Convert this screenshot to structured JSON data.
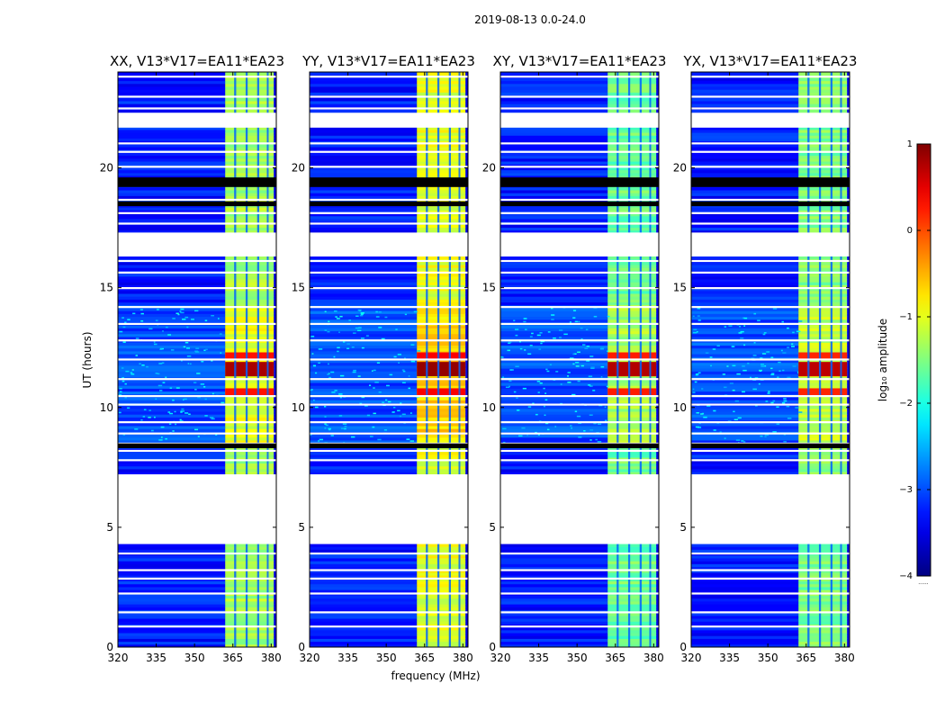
{
  "chart_data": {
    "type": "heatmap",
    "title": "2019-08-13 0.0-24.0",
    "xlabel": "frequency (MHz)",
    "ylabel": "UT (hours)",
    "xlim": [
      320,
      382
    ],
    "ylim": [
      0,
      24
    ],
    "x_ticks": [
      320,
      335,
      350,
      365,
      380
    ],
    "y_ticks": [
      0,
      5,
      10,
      15,
      20
    ],
    "panels": [
      {
        "title": "XX, V13*V17=EA11*EA23",
        "polarization": "XX",
        "y_tick_labels": [
          "0",
          "5",
          "10",
          "15",
          "20"
        ],
        "high_band_level": -1.3,
        "hot_level": 0.3
      },
      {
        "title": "YY, V13*V17=EA11*EA23",
        "polarization": "YY",
        "y_tick_labels": [
          "0",
          "5",
          "10",
          "15",
          "20"
        ],
        "high_band_level": -1.0,
        "hot_level": 0.4
      },
      {
        "title": "XY, V13*V17=EA11*EA23",
        "polarization": "XY",
        "y_tick_labels": [
          "0",
          "5",
          "10",
          "15",
          "20"
        ],
        "high_band_level": -1.6,
        "hot_level": 0.25
      },
      {
        "title": "YX, V13*V17=EA11*EA23",
        "polarization": "YX",
        "y_tick_labels": [
          "0",
          "5",
          "10",
          "15",
          "20"
        ],
        "high_band_level": -1.5,
        "hot_level": 0.2
      }
    ],
    "high_band_mhz": [
      362,
      381
    ],
    "band_gaps_mhz": [
      [
        365.5,
        366.3
      ],
      [
        370.0,
        370.8
      ],
      [
        374.5,
        375.3
      ],
      [
        378.3,
        379.0
      ]
    ],
    "no_data_hours": [
      [
        4.3,
        7.2
      ],
      [
        16.3,
        17.3
      ],
      [
        21.7,
        22.3
      ]
    ],
    "flagged_black_hours": [
      [
        8.3,
        8.5
      ],
      [
        18.4,
        18.6
      ],
      [
        19.2,
        19.6
      ]
    ],
    "active_period_hours": [
      8.5,
      14.2
    ],
    "strong_rfi_hours": [
      [
        11.3,
        11.9
      ],
      [
        12.0,
        12.3
      ],
      [
        10.5,
        10.8
      ]
    ],
    "colorbar": {
      "label": "log₁₀ amplitude",
      "min": -4,
      "max": 1,
      "ticks": [
        1,
        0,
        -1,
        -2,
        -3,
        -4
      ],
      "tick_labels": [
        "1",
        "0",
        "−1",
        "−2",
        "−3",
        "−4"
      ],
      "colormap": "jet",
      "note": "......"
    }
  }
}
